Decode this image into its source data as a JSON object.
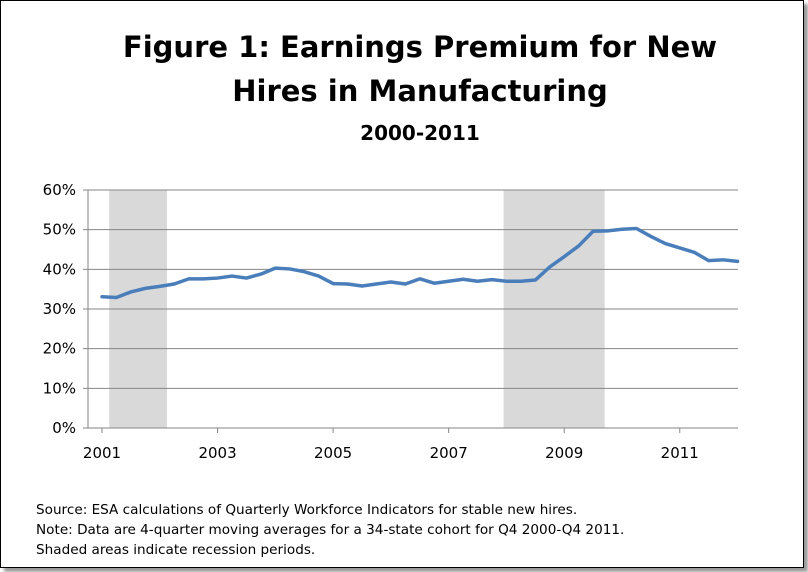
{
  "title_line1": "Figure 1: Earnings Premium for New",
  "title_line2": "Hires in Manufacturing",
  "subtitle": "2000-2011",
  "notes": [
    "Source:  ESA calculations of Quarterly Workforce Indicators for stable new hires.",
    "Note:  Data are 4-quarter moving averages for a 34-state cohort for Q4 2000-Q4 2011.",
    "Shaded areas indicate recession periods."
  ],
  "colors": {
    "line": "#4a7ebb",
    "recession": "#d9d9d9",
    "grid": "#868686"
  },
  "chart_data": {
    "type": "line",
    "x_tick_labels": [
      "2001",
      "2003",
      "2005",
      "2007",
      "2009",
      "2011"
    ],
    "x_ticks": [
      2001,
      2003,
      2005,
      2007,
      2009,
      2011
    ],
    "y_tick_labels": [
      "0%",
      "10%",
      "20%",
      "30%",
      "40%",
      "50%",
      "60%"
    ],
    "xlim": [
      2001,
      2012.25
    ],
    "ylim": [
      0,
      60
    ],
    "grid": true,
    "recessions": [
      [
        2001.125,
        2002.125
      ],
      [
        2007.95,
        2009.7
      ]
    ],
    "series": [
      {
        "x": [
          2001,
          2001.25,
          2001.5,
          2001.75,
          2002,
          2002.25,
          2002.5,
          2002.75,
          2003,
          2003.25,
          2003.5,
          2003.75,
          2004,
          2004.25,
          2004.5,
          2004.75,
          2005,
          2005.25,
          2005.5,
          2005.75,
          2006,
          2006.25,
          2006.5,
          2006.75,
          2007,
          2007.25,
          2007.5,
          2007.75,
          2008,
          2008.25,
          2008.5,
          2008.75,
          2009,
          2009.25,
          2009.5,
          2009.75,
          2010,
          2010.25,
          2010.5,
          2010.75,
          2011,
          2011.25,
          2011.5,
          2011.75,
          2012
        ],
        "values": [
          33.1,
          32.9,
          34.3,
          35.2,
          35.7,
          36.3,
          37.6,
          37.6,
          37.8,
          38.3,
          37.8,
          38.8,
          40.3,
          40.1,
          39.4,
          38.3,
          36.4,
          36.3,
          35.8,
          36.3,
          36.8,
          36.3,
          37.6,
          36.5,
          37.0,
          37.5,
          37.0,
          37.4,
          37.0,
          37.0,
          37.3,
          40.6,
          43.2,
          45.9,
          49.6,
          49.7,
          50.1,
          50.3,
          48.3,
          46.5,
          45.4,
          44.3,
          42.2,
          42.4,
          42.0
        ]
      }
    ]
  }
}
